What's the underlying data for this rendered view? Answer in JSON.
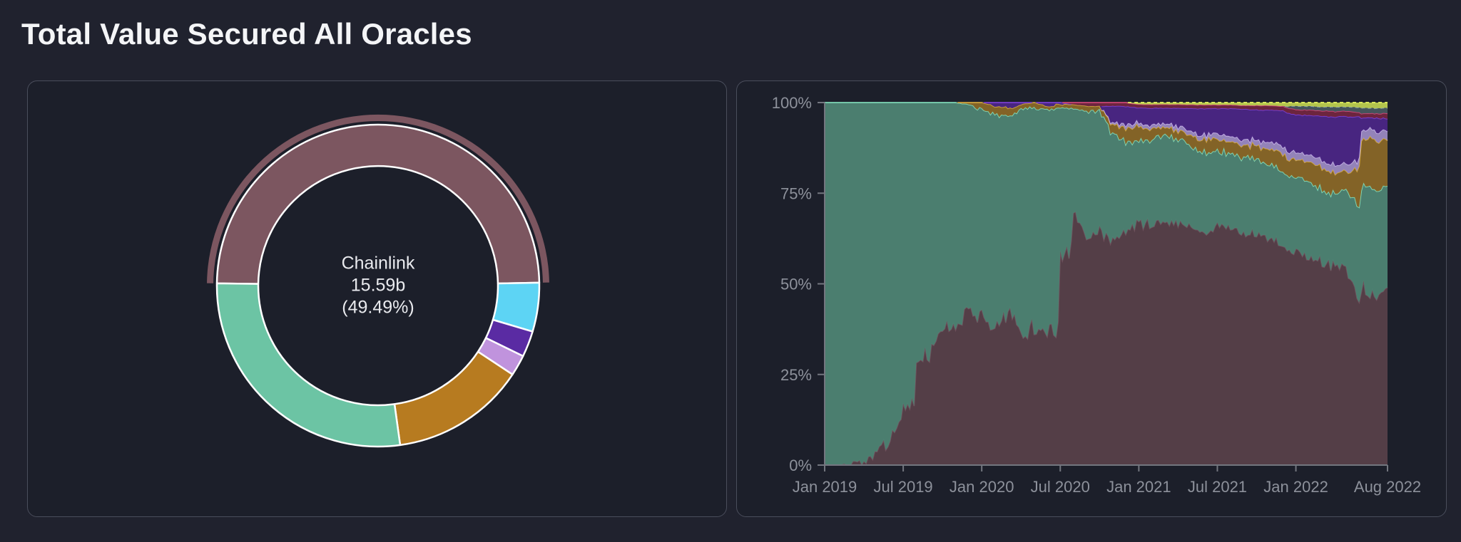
{
  "page": {
    "title": "Total Value Secured All Oracles",
    "background": "#20222e",
    "panel_background": "#1c1f2a",
    "panel_border": "#4a4e5c",
    "text_color": "#f4f5f7",
    "axis_label_color": "#8d919b"
  },
  "chart_data": [
    {
      "type": "pie",
      "subtype": "donut",
      "selected_segment": "Chainlink",
      "center_label": {
        "line1": "Chainlink",
        "line2": "15.59b",
        "line3": "(49.49%)"
      },
      "start_angle_deg": -89.2,
      "segments": [
        {
          "name": "chainlink",
          "label": "Chainlink",
          "percent": 49.49,
          "color": "#7c5660",
          "highlighted": true
        },
        {
          "name": "cyan-segment",
          "label": "",
          "percent": 4.9,
          "color": "#5dd4f4",
          "highlighted": false
        },
        {
          "name": "purple-segment",
          "label": "",
          "percent": 2.6,
          "color": "#5a2ba3",
          "highlighted": false
        },
        {
          "name": "lavender-segment",
          "label": "",
          "percent": 2.1,
          "color": "#c093dd",
          "highlighted": false
        },
        {
          "name": "gold-segment",
          "label": "",
          "percent": 13.5,
          "color": "#b77b20",
          "highlighted": false
        },
        {
          "name": "teal-segment",
          "label": "",
          "percent": 27.41,
          "color": "#6cc4a4",
          "highlighted": false
        }
      ]
    },
    {
      "type": "area",
      "stacked": "percent",
      "grid": false,
      "legend": "none",
      "months_total": 44,
      "x_range": [
        "Jan 2019",
        "Aug 2022"
      ],
      "x_ticks": [
        {
          "label": "Jan 2019",
          "month": 0
        },
        {
          "label": "Jul 2019",
          "month": 6
        },
        {
          "label": "Jan 2020",
          "month": 12
        },
        {
          "label": "Jul 2020",
          "month": 18
        },
        {
          "label": "Jan 2021",
          "month": 24
        },
        {
          "label": "Jul 2021",
          "month": 30
        },
        {
          "label": "Jan 2022",
          "month": 36
        },
        {
          "label": "Aug 2022",
          "month": 43
        }
      ],
      "y_ticks": [
        {
          "label": "100%",
          "value": 100
        },
        {
          "label": "75%",
          "value": 75
        },
        {
          "label": "50%",
          "value": 50
        },
        {
          "label": "25%",
          "value": 25
        },
        {
          "label": "0%",
          "value": 0
        }
      ],
      "ylim": [
        0,
        100
      ],
      "series": [
        {
          "name": "chainlink",
          "fill": "#564049",
          "stroke": "#6e505c",
          "dashed": false,
          "values": [
            0,
            0,
            0.5,
            1,
            4,
            8,
            16,
            26,
            31,
            38,
            37,
            43,
            40,
            36,
            42,
            35,
            38,
            37,
            58,
            71,
            62,
            64,
            62,
            64,
            67,
            66,
            67,
            67,
            66,
            64,
            66,
            66,
            64,
            63,
            62,
            60,
            59,
            57,
            56,
            55,
            53,
            49,
            46,
            49
          ]
        },
        {
          "name": "teal",
          "fill": "#4d8273",
          "stroke": "#7ed8b6",
          "dashed": false,
          "values": [
            100,
            100,
            99.5,
            99,
            96,
            92,
            84,
            74,
            69,
            62,
            63,
            56.5,
            58,
            60.5,
            54.5,
            63,
            60.5,
            61,
            40.5,
            27.5,
            35.5,
            33.5,
            29.5,
            25,
            22.5,
            24,
            24,
            22.8,
            22.2,
            22.7,
            20.4,
            20.4,
            21.2,
            21,
            20.5,
            20.8,
            20.5,
            21,
            20.3,
            19.9,
            22.9,
            27.8,
            29.8,
            28
          ]
        },
        {
          "name": "gold",
          "fill": "#876628",
          "stroke": "#cfa43e",
          "dashed": false,
          "values": [
            0,
            0,
            0,
            0,
            0,
            0,
            0,
            0,
            0,
            0,
            0,
            0.5,
            2,
            2.5,
            2,
            1.5,
            1.5,
            1,
            1,
            1,
            1.5,
            1.5,
            2,
            4,
            4,
            3,
            2.5,
            2.5,
            3,
            3.5,
            3.5,
            3,
            3.5,
            4,
            4.5,
            5,
            5,
            5.5,
            6,
            6,
            5,
            13,
            14,
            12.5
          ]
        },
        {
          "name": "lavender",
          "fill": "#9887c0",
          "stroke": "#c3b0e4",
          "dashed": false,
          "values": [
            0,
            0,
            0,
            0,
            0,
            0,
            0,
            0,
            0,
            0,
            0,
            0,
            0,
            0,
            0,
            0,
            0,
            0,
            0,
            0,
            0,
            0,
            0.5,
            1,
            1,
            1,
            1,
            1.2,
            1.2,
            1.2,
            1.5,
            1.5,
            1.5,
            1.5,
            2,
            2,
            2,
            2,
            2,
            2.2,
            2.2,
            2.5,
            2.5,
            2.5
          ]
        },
        {
          "name": "purple",
          "fill": "#4a2584",
          "stroke": "#7a3fd0",
          "dashed": false,
          "values": [
            0,
            0,
            0,
            0,
            0,
            0,
            0,
            0,
            0,
            0,
            0,
            0,
            0,
            1,
            1.5,
            0.5,
            0,
            1,
            0.5,
            0,
            0,
            0,
            5,
            5,
            4,
            4.5,
            4,
            5,
            6,
            7,
            7,
            7.5,
            8,
            8.5,
            9,
            10,
            10,
            11,
            12,
            13,
            13,
            3.5,
            3.5,
            3.5
          ]
        },
        {
          "name": "magenta",
          "fill": "#6f2540",
          "stroke": "#cc4576",
          "dashed": false,
          "values": [
            0,
            0,
            0,
            0,
            0,
            0,
            0,
            0,
            0,
            0,
            0,
            0,
            0,
            0,
            0,
            0,
            0,
            0,
            0,
            0.5,
            1,
            1,
            1,
            1,
            1,
            1,
            1,
            1,
            1,
            1,
            1,
            1,
            1,
            1.2,
            1.2,
            1.2,
            1.5,
            1.5,
            1.5,
            1.5,
            1.5,
            1.2,
            1.2,
            1.5
          ]
        },
        {
          "name": "slate",
          "fill": "#46565e",
          "stroke": "#87a0a4",
          "dashed": true,
          "values": [
            0,
            0,
            0,
            0,
            0,
            0,
            0,
            0,
            0,
            0,
            0,
            0,
            0,
            0,
            0,
            0,
            0,
            0,
            0,
            0,
            0,
            0,
            0,
            0,
            0,
            0,
            0,
            0,
            0,
            0,
            0,
            0,
            0,
            0,
            0,
            0,
            1,
            1,
            1,
            1.2,
            1.2,
            1.5,
            1.5,
            1.5
          ]
        },
        {
          "name": "lime",
          "fill": "#b9cb4f",
          "stroke": "#e9f862",
          "dashed": true,
          "values": [
            0,
            0,
            0,
            0,
            0,
            0,
            0,
            0,
            0,
            0,
            0,
            0,
            0,
            0,
            0,
            0,
            0,
            0,
            0,
            0,
            0,
            0,
            0,
            0,
            0.5,
            0.5,
            0.5,
            0.5,
            0.6,
            0.6,
            0.6,
            0.6,
            0.8,
            0.8,
            0.8,
            1,
            1,
            1,
            1.2,
            1.2,
            1.2,
            1.5,
            1.5,
            1.5
          ]
        }
      ]
    }
  ]
}
